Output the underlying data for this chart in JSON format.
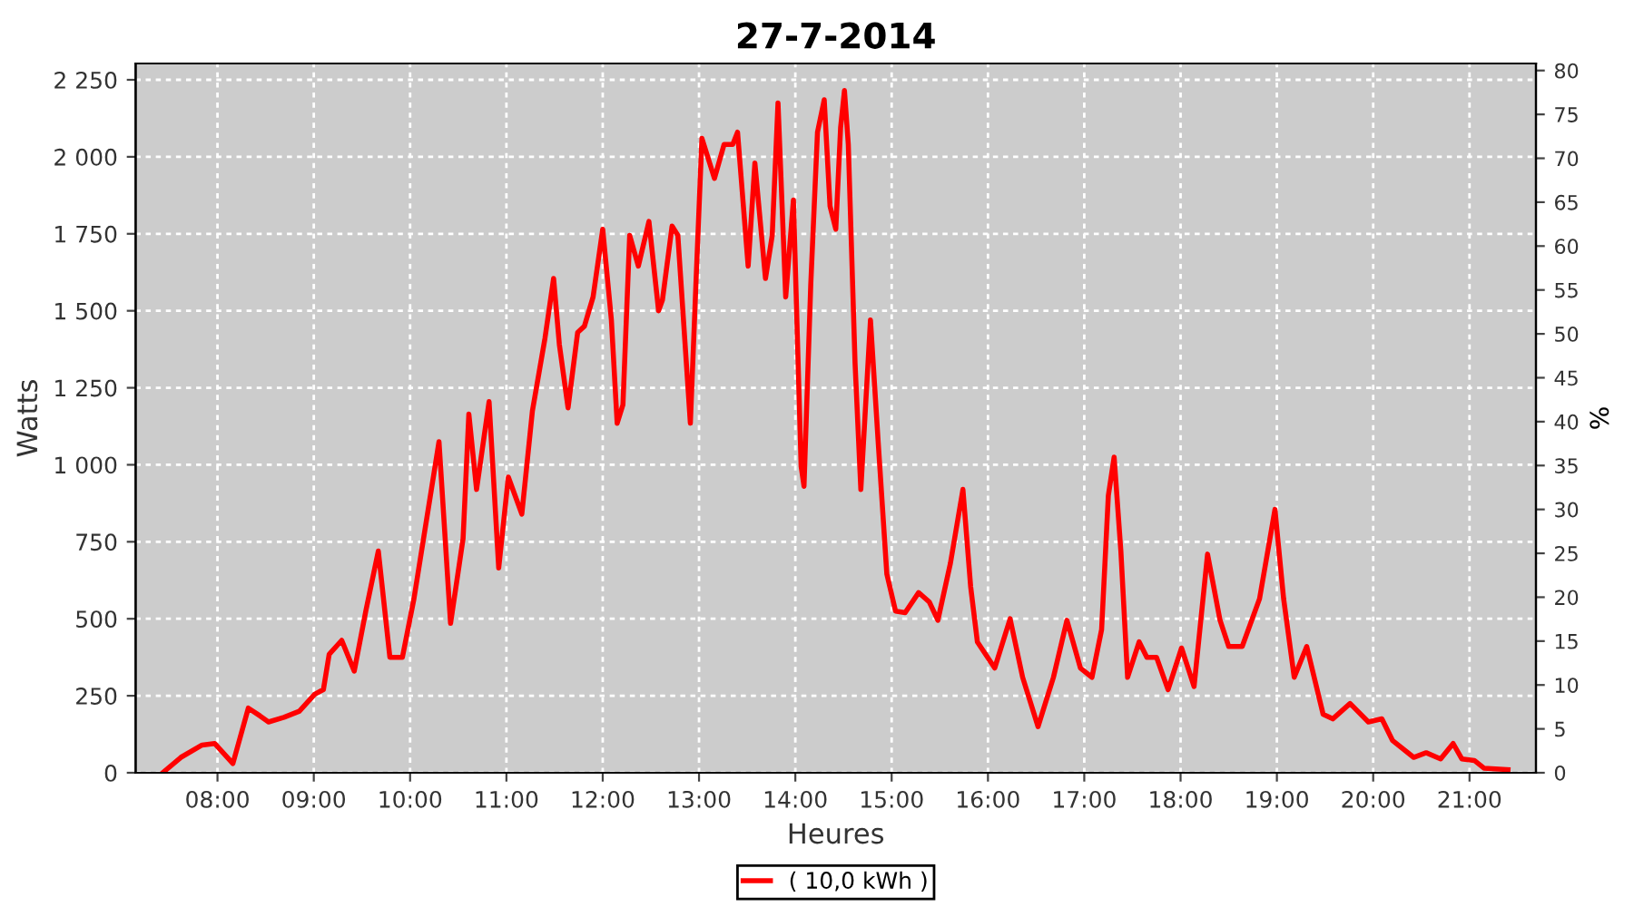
{
  "chart_data": {
    "type": "line",
    "title": "27-7-2014",
    "xlabel": "Heures",
    "ylabel": "Watts",
    "y2label": "%",
    "x": [
      7.43,
      7.62,
      7.84,
      7.97,
      8.16,
      8.32,
      8.44,
      8.53,
      8.69,
      8.85,
      9.01,
      9.1,
      9.16,
      9.29,
      9.42,
      9.54,
      9.67,
      9.79,
      9.92,
      10.04,
      10.3,
      10.42,
      10.55,
      10.61,
      10.69,
      10.82,
      10.92,
      11.02,
      11.16,
      11.27,
      11.4,
      11.49,
      11.55,
      11.64,
      11.74,
      11.81,
      11.9,
      12.0,
      12.09,
      12.15,
      12.21,
      12.28,
      12.37,
      12.48,
      12.58,
      12.62,
      12.72,
      12.78,
      12.91,
      12.97,
      13.03,
      13.16,
      13.26,
      13.35,
      13.4,
      13.51,
      13.58,
      13.69,
      13.76,
      13.82,
      13.9,
      13.98,
      14.06,
      14.09,
      14.16,
      14.23,
      14.3,
      14.36,
      14.42,
      14.47,
      14.51,
      14.55,
      14.62,
      14.68,
      14.78,
      14.86,
      14.95,
      15.04,
      15.14,
      15.28,
      15.39,
      15.48,
      15.61,
      15.74,
      15.82,
      15.89,
      16.07,
      16.23,
      16.36,
      16.52,
      16.68,
      16.82,
      16.96,
      17.08,
      17.18,
      17.25,
      17.31,
      17.38,
      17.45,
      17.57,
      17.65,
      17.75,
      17.87,
      18.01,
      18.14,
      18.28,
      18.41,
      18.5,
      18.64,
      18.82,
      18.98,
      19.07,
      19.18,
      19.31,
      19.48,
      19.58,
      19.76,
      19.95,
      20.09,
      20.2,
      20.42,
      20.55,
      20.7,
      20.83,
      20.92,
      21.05,
      21.15,
      21.4
    ],
    "series": [
      {
        "name": "( 10,0 kWh )",
        "color": "#ff0000",
        "values": [
          0,
          50,
          90,
          95,
          30,
          210,
          185,
          165,
          180,
          200,
          255,
          270,
          385,
          430,
          330,
          525,
          720,
          375,
          375,
          565,
          1075,
          485,
          760,
          1165,
          920,
          1205,
          665,
          960,
          840,
          1175,
          1410,
          1605,
          1390,
          1185,
          1430,
          1450,
          1545,
          1765,
          1470,
          1135,
          1195,
          1745,
          1645,
          1790,
          1500,
          1535,
          1775,
          1745,
          1135,
          1605,
          2060,
          1930,
          2040,
          2040,
          2080,
          1645,
          1980,
          1605,
          1745,
          2175,
          1545,
          1860,
          995,
          930,
          1585,
          2080,
          2185,
          1840,
          1765,
          2095,
          2215,
          2040,
          1330,
          920,
          1470,
          1075,
          645,
          525,
          520,
          585,
          555,
          495,
          680,
          920,
          605,
          425,
          340,
          500,
          310,
          150,
          310,
          495,
          340,
          310,
          465,
          900,
          1025,
          720,
          310,
          425,
          375,
          375,
          270,
          405,
          280,
          710,
          495,
          410,
          410,
          565,
          855,
          565,
          310,
          410,
          190,
          175,
          225,
          165,
          175,
          105,
          50,
          65,
          45,
          95,
          45,
          40,
          15,
          10
        ]
      }
    ],
    "xlim": [
      7.15,
      21.69
    ],
    "xticks": [
      {
        "value": 8,
        "label": "08:00"
      },
      {
        "value": 9,
        "label": "09:00"
      },
      {
        "value": 10,
        "label": "10:00"
      },
      {
        "value": 11,
        "label": "11:00"
      },
      {
        "value": 12,
        "label": "12:00"
      },
      {
        "value": 13,
        "label": "13:00"
      },
      {
        "value": 14,
        "label": "14:00"
      },
      {
        "value": 15,
        "label": "15:00"
      },
      {
        "value": 16,
        "label": "16:00"
      },
      {
        "value": 17,
        "label": "17:00"
      },
      {
        "value": 18,
        "label": "18:00"
      },
      {
        "value": 19,
        "label": "19:00"
      },
      {
        "value": 20,
        "label": "20:00"
      },
      {
        "value": 21,
        "label": "21:00"
      }
    ],
    "ylim": [
      0,
      2303
    ],
    "yticks": [
      0,
      250,
      500,
      750,
      {
        "value": 1000,
        "label": "1 000"
      },
      {
        "value": 1250,
        "label": "1 250"
      },
      {
        "value": 1500,
        "label": "1 500"
      },
      {
        "value": 1750,
        "label": "1 750"
      },
      {
        "value": 2000,
        "label": "2 000"
      },
      {
        "value": 2250,
        "label": "2 250"
      }
    ],
    "y2lim": [
      0,
      80.8
    ],
    "y2ticks": [
      0,
      5,
      10,
      15,
      20,
      25,
      30,
      35,
      40,
      45,
      50,
      55,
      60,
      65,
      70,
      75,
      80
    ],
    "grid": true,
    "legend": "bottom",
    "marker": "none",
    "line_style": "solid"
  }
}
